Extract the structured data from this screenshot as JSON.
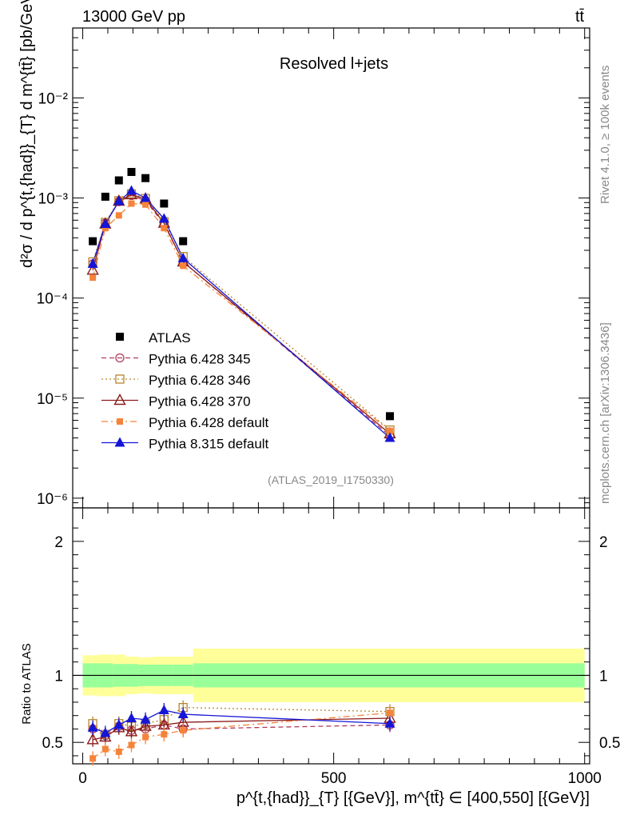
{
  "header": {
    "left_label": "13000 GeV pp",
    "right_label": "tt̄",
    "panel_title": "Resolved l+jets",
    "analysis_id": "(ATLAS_2019_I1750330)",
    "side_rivet": "Rivet 4.1.0, ≥ 100k events",
    "side_mcplots": "mcplots.cern.ch [arXiv:1306.3436]"
  },
  "colors": {
    "data": "#000000",
    "p345": "#b03a5a",
    "p346": "#b8862d",
    "p370": "#8b1a1a",
    "p6def": "#f5843a",
    "p8def": "#1515d6",
    "band_inner": "#99ff99",
    "band_outer": "#ffff99"
  },
  "chart_data": [
    {
      "type": "scatter",
      "scale": "log",
      "title": "Resolved l+jets",
      "ylabel": "d²σ / d p^{t,{had}}_{T} d m^{tt̄} [pb/GeV²]",
      "xlim": [
        -20,
        1010
      ],
      "ylim": [
        8e-07,
        0.05
      ],
      "ytick_labels": [
        "10⁻⁶",
        "10⁻⁵",
        "10⁻⁴",
        "10⁻³",
        "10⁻²"
      ],
      "x": [
        20,
        45,
        72,
        97,
        125,
        162,
        200,
        612
      ],
      "series": [
        {
          "name": "ATLAS",
          "marker": "square-filled",
          "values": [
            0.00037,
            0.00103,
            0.0015,
            0.00182,
            0.00158,
            0.00088,
            0.00037,
            6.6e-06
          ]
        },
        {
          "name": "Pythia 6.428 345",
          "marker": "circle-open",
          "line": "dashed",
          "values": [
            0.00022,
            0.00056,
            0.00092,
            0.00106,
            0.00094,
            0.00055,
            0.00023,
            4.2e-06
          ]
        },
        {
          "name": "Pythia 6.428 346",
          "marker": "square-open",
          "line": "dotted",
          "values": [
            0.00023,
            0.00057,
            0.00094,
            0.0011,
            0.00099,
            0.00058,
            0.00026,
            4.8e-06
          ]
        },
        {
          "name": "Pythia 6.428 370",
          "marker": "triangle-open",
          "line": "solid",
          "values": [
            0.00019,
            0.00055,
            0.00093,
            0.00108,
            0.00098,
            0.00056,
            0.00023,
            4.4e-06
          ]
        },
        {
          "name": "Pythia 6.428 default",
          "marker": "square-small",
          "line": "dashdot",
          "values": [
            0.00016,
            0.0005,
            0.00067,
            0.00088,
            0.00086,
            0.0005,
            0.00021,
            4.7e-06
          ]
        },
        {
          "name": "Pythia 8.315 default",
          "marker": "triangle-filled",
          "line": "solid",
          "values": [
            0.00022,
            0.00055,
            0.00093,
            0.00118,
            0.001,
            0.00062,
            0.00025,
            4e-06
          ]
        }
      ]
    },
    {
      "type": "line",
      "ylabel": "Ratio to ATLAS",
      "xlabel": "p^{t,{had}}_{T} [{GeV}], m^{tt̄} ∈ [400,550] [{GeV}]",
      "xlim": [
        -20,
        1010
      ],
      "ylim": [
        0.34,
        2.25
      ],
      "xticks": [
        0,
        500,
        1000
      ],
      "yticks": [
        0.5,
        1,
        2
      ],
      "bands": {
        "edges": [
          0,
          30,
          60,
          85,
          110,
          140,
          180,
          220,
          1000
        ],
        "inner": [
          0.15,
          0.16,
          0.16,
          0.14,
          0.13,
          0.14,
          0.14,
          0.09
        ],
        "outer": [
          0.15,
          0.16,
          0.16,
          0.14,
          0.13,
          0.14,
          0.14,
          0.09
        ],
        "inner_half": [
          0.09,
          0.09,
          0.085,
          0.085,
          0.08,
          0.08,
          0.08,
          0.09
        ],
        "outer_half": [
          0.15,
          0.155,
          0.155,
          0.14,
          0.135,
          0.14,
          0.14,
          0.2
        ]
      },
      "x": [
        20,
        45,
        72,
        97,
        125,
        162,
        200,
        612
      ],
      "series": [
        {
          "name": "Pythia 6.428 345",
          "values": [
            0.6,
            0.55,
            0.62,
            0.59,
            0.6,
            0.63,
            0.6,
            0.63
          ]
        },
        {
          "name": "Pythia 6.428 346",
          "values": [
            0.64,
            0.56,
            0.64,
            0.62,
            0.64,
            0.67,
            0.76,
            0.73
          ]
        },
        {
          "name": "Pythia 6.428 370",
          "values": [
            0.52,
            0.54,
            0.61,
            0.58,
            0.62,
            0.63,
            0.65,
            0.68
          ]
        },
        {
          "name": "Pythia 6.428 default",
          "values": [
            0.38,
            0.45,
            0.43,
            0.48,
            0.54,
            0.56,
            0.59,
            0.72
          ]
        },
        {
          "name": "Pythia 8.315 default",
          "values": [
            0.61,
            0.57,
            0.63,
            0.68,
            0.67,
            0.74,
            0.71,
            0.64
          ]
        }
      ]
    }
  ]
}
